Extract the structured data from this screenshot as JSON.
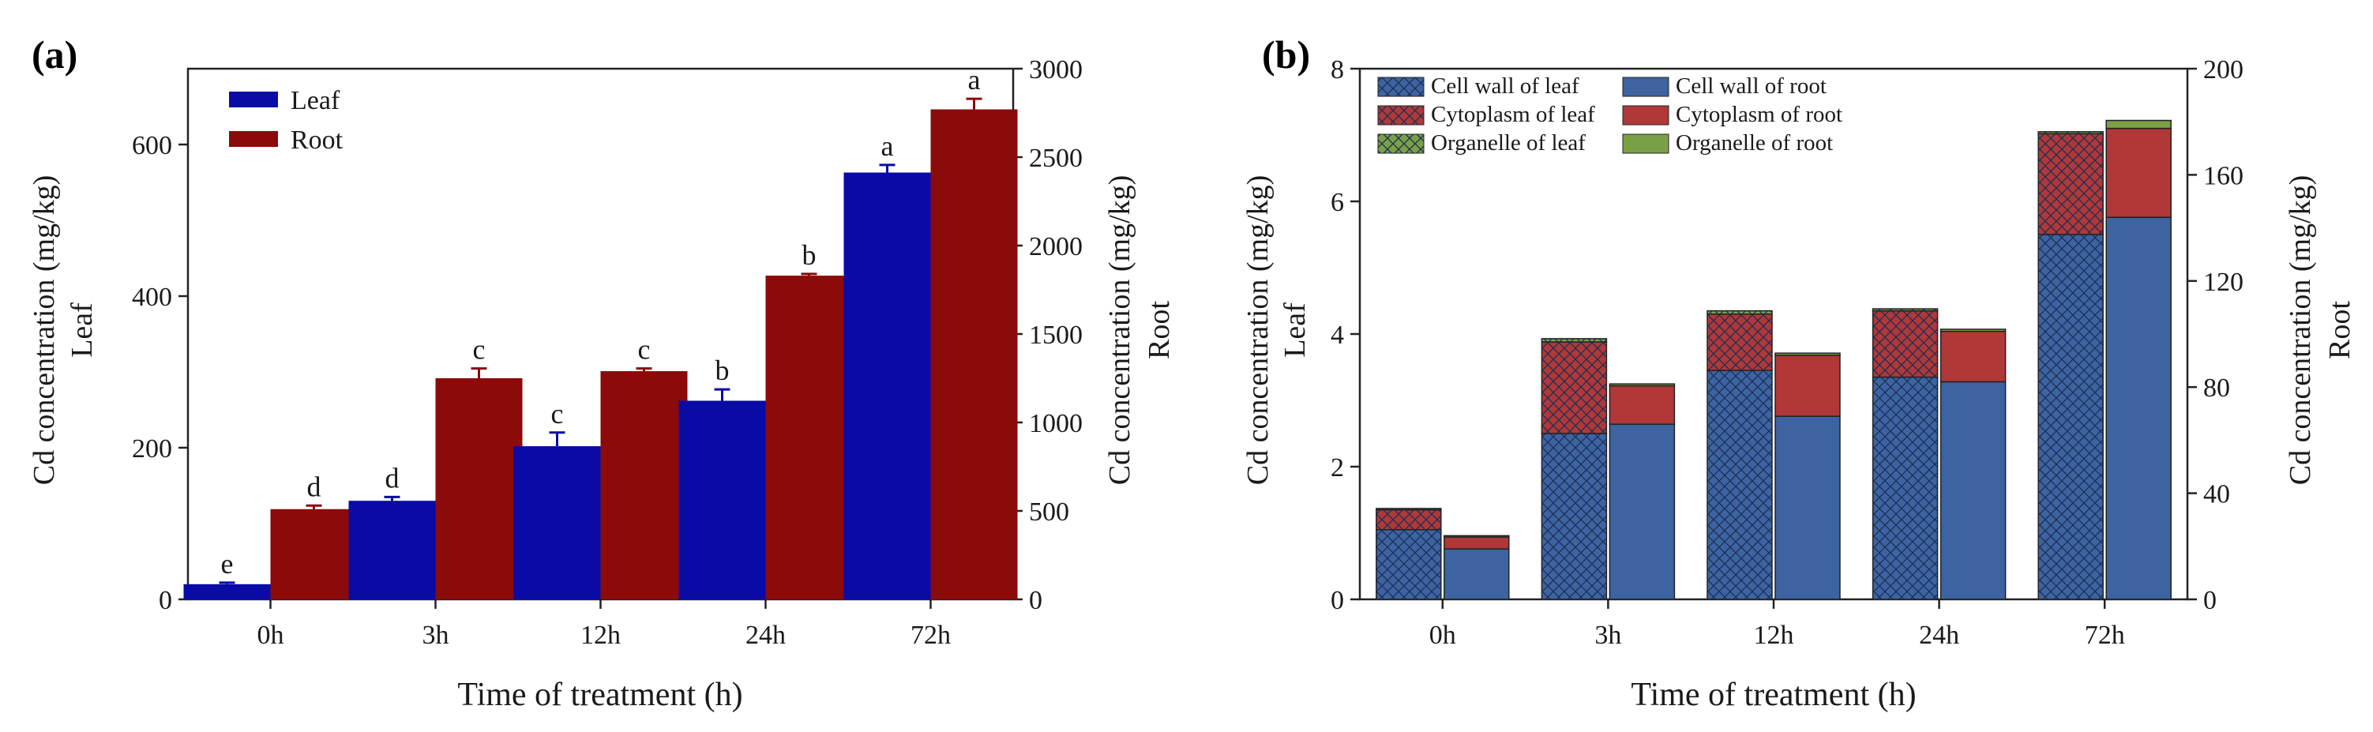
{
  "panels": {
    "a_label": "(a)",
    "b_label": "(b)"
  },
  "chart_data": [
    {
      "type": "bar",
      "panel": "(a)",
      "categories": [
        "0h",
        "3h",
        "12h",
        "24h",
        "72h"
      ],
      "xlabel": "Time of treatment (h)",
      "ylabel_left": "Cd concentration (mg/kg)",
      "ylabel_left_sub": "Leaf",
      "ylabel_right": "Cd concentration (mg/kg)",
      "ylabel_right_sub": "Root",
      "ylim_left": [
        0,
        700
      ],
      "yticks_left": [
        0,
        200,
        400,
        600
      ],
      "ylim_right": [
        0,
        3000
      ],
      "yticks_right": [
        0,
        500,
        1000,
        1500,
        2000,
        2500,
        3000
      ],
      "legend_position": "top-left",
      "series": [
        {
          "name": "Leaf",
          "axis": "left",
          "color": "#0a0aa6",
          "values": [
            20,
            130,
            202,
            262,
            563
          ],
          "errors": [
            2,
            5,
            18,
            15,
            10
          ],
          "letters": [
            "e",
            "d",
            "c",
            "b",
            "a"
          ]
        },
        {
          "name": "Root",
          "axis": "right",
          "color": "#8b0a0a",
          "values": [
            510,
            1250,
            1290,
            1830,
            2770
          ],
          "errors": [
            20,
            55,
            15,
            10,
            60
          ],
          "letters": [
            "d",
            "c",
            "c",
            "b",
            "a"
          ]
        }
      ]
    },
    {
      "type": "stacked-bar",
      "panel": "(b)",
      "categories": [
        "0h",
        "3h",
        "12h",
        "24h",
        "72h"
      ],
      "xlabel": "Time of treatment (h)",
      "ylabel_left": "Cd concentration (mg/kg)",
      "ylabel_left_sub": "Leaf",
      "ylabel_right": "Cd concentration (mg/kg)",
      "ylabel_right_sub": "Root",
      "ylim_left": [
        0,
        8
      ],
      "yticks_left": [
        0,
        2,
        4,
        6,
        8
      ],
      "ylim_right": [
        0,
        200
      ],
      "yticks_right": [
        0,
        40,
        80,
        120,
        160,
        200
      ],
      "legend_position": "top-left",
      "colors": {
        "wall": "#3d63a1",
        "cyto": "#b03838",
        "organelle": "#7aa046"
      },
      "groups": [
        {
          "name": "leaf",
          "axis": "left",
          "hatched": true,
          "series": [
            {
              "name": "Cell wall of leaf",
              "key": "wall",
              "values": [
                1.05,
                2.5,
                3.45,
                3.35,
                5.5
              ]
            },
            {
              "name": "Cytoplasm of leaf",
              "key": "cyto",
              "values": [
                0.3,
                1.38,
                0.85,
                1.0,
                1.52
              ]
            },
            {
              "name": "Organelle of leaf",
              "key": "organelle",
              "values": [
                0.02,
                0.05,
                0.05,
                0.03,
                0.03
              ]
            }
          ]
        },
        {
          "name": "root",
          "axis": "right",
          "hatched": false,
          "series": [
            {
              "name": "Cell wall of root",
              "key": "wall",
              "values": [
                19,
                66,
                69,
                82,
                144
              ]
            },
            {
              "name": "Cytoplasm of root",
              "key": "cyto",
              "values": [
                4.5,
                14.5,
                23,
                19,
                33.5
              ]
            },
            {
              "name": "Organelle of root",
              "key": "organelle",
              "values": [
                0.5,
                0.7,
                0.8,
                0.8,
                3.0
              ]
            }
          ]
        }
      ]
    }
  ]
}
